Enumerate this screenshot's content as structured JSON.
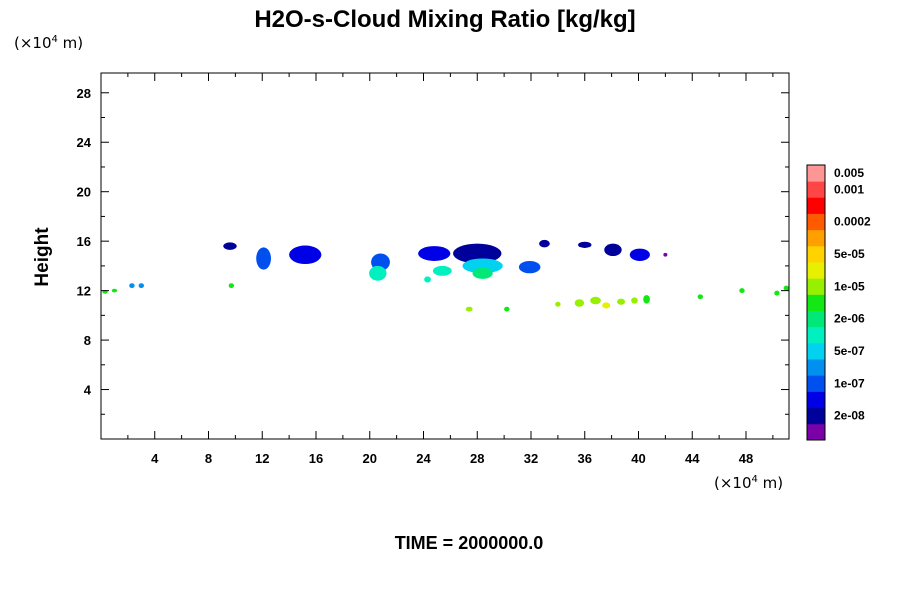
{
  "chart_data": {
    "type": "heatmap",
    "title": "H2O-s-Cloud Mixing Ratio [kg/kg]",
    "xlabel": "",
    "ylabel": "Height",
    "x_unit": {
      "prefix": "(×10",
      "exponent": "4",
      "suffix": " m)"
    },
    "y_unit": {
      "prefix": "(×10",
      "exponent": "4",
      "suffix": " m)"
    },
    "xlim": [
      0,
      51.2
    ],
    "ylim": [
      0,
      29.6
    ],
    "x_ticks": [
      4,
      8,
      12,
      16,
      20,
      24,
      28,
      32,
      36,
      40,
      44,
      48
    ],
    "y_ticks": [
      4,
      8,
      12,
      16,
      20,
      24,
      28
    ],
    "x_tick_labels": [
      "4",
      "8",
      "12",
      "16",
      "20",
      "24",
      "28",
      "32",
      "36",
      "40",
      "44",
      "48"
    ],
    "y_tick_labels": [
      "4",
      "8",
      "12",
      "16",
      "20",
      "24",
      "28"
    ],
    "grid": false,
    "annotation": "TIME = 2000000.0",
    "colorbar": {
      "colors": [
        "#7a00a8",
        "#00009a",
        "#0000e6",
        "#0050f0",
        "#0090f0",
        "#00d2f0",
        "#00f0c0",
        "#00e878",
        "#14e814",
        "#96f000",
        "#e6f000",
        "#ffd200",
        "#ffa000",
        "#ff5a00",
        "#ff0000",
        "#ff4646",
        "#ff9696"
      ],
      "labels": [
        "2e-08",
        "1e-07",
        "5e-07",
        "2e-06",
        "1e-05",
        "5e-05",
        "0.0002",
        "0.001",
        "0.005"
      ],
      "label_bins": [
        1,
        3,
        5,
        7,
        9,
        11,
        13,
        15,
        16
      ]
    },
    "cloud_regions": [
      {
        "x": 9.6,
        "y": 15.6,
        "w": 1.0,
        "h": 0.6,
        "level": 1
      },
      {
        "x": 12.1,
        "y": 14.6,
        "w": 1.1,
        "h": 1.8,
        "level": 3
      },
      {
        "x": 15.2,
        "y": 14.9,
        "w": 2.4,
        "h": 1.5,
        "level": 2
      },
      {
        "x": 20.8,
        "y": 14.3,
        "w": 1.4,
        "h": 1.4,
        "level": 3
      },
      {
        "x": 20.6,
        "y": 13.4,
        "w": 1.3,
        "h": 1.2,
        "level": 6
      },
      {
        "x": 24.8,
        "y": 15.0,
        "w": 2.4,
        "h": 1.2,
        "level": 2
      },
      {
        "x": 28.0,
        "y": 15.0,
        "w": 3.6,
        "h": 1.6,
        "level": 1
      },
      {
        "x": 28.4,
        "y": 14.0,
        "w": 3.0,
        "h": 1.2,
        "level": 5
      },
      {
        "x": 28.4,
        "y": 13.4,
        "w": 1.5,
        "h": 0.9,
        "level": 7
      },
      {
        "x": 25.4,
        "y": 13.6,
        "w": 1.4,
        "h": 0.8,
        "level": 6
      },
      {
        "x": 31.9,
        "y": 13.9,
        "w": 1.6,
        "h": 1.0,
        "level": 3
      },
      {
        "x": 33.0,
        "y": 15.8,
        "w": 0.8,
        "h": 0.6,
        "level": 1
      },
      {
        "x": 36.0,
        "y": 15.7,
        "w": 1.0,
        "h": 0.5,
        "level": 1
      },
      {
        "x": 38.1,
        "y": 15.3,
        "w": 1.3,
        "h": 1.0,
        "level": 1
      },
      {
        "x": 40.1,
        "y": 14.9,
        "w": 1.5,
        "h": 1.0,
        "level": 2
      },
      {
        "x": 24.3,
        "y": 12.9,
        "w": 0.5,
        "h": 0.5,
        "level": 6
      },
      {
        "x": 2.3,
        "y": 12.4,
        "w": 0.4,
        "h": 0.4,
        "level": 4
      },
      {
        "x": 3.0,
        "y": 12.4,
        "w": 0.4,
        "h": 0.4,
        "level": 4
      },
      {
        "x": 1.0,
        "y": 12.0,
        "w": 0.4,
        "h": 0.3,
        "level": 8
      },
      {
        "x": 9.7,
        "y": 12.4,
        "w": 0.4,
        "h": 0.4,
        "level": 8
      },
      {
        "x": 27.4,
        "y": 10.5,
        "w": 0.5,
        "h": 0.4,
        "level": 9
      },
      {
        "x": 30.2,
        "y": 10.5,
        "w": 0.4,
        "h": 0.4,
        "level": 8
      },
      {
        "x": 34.0,
        "y": 10.9,
        "w": 0.4,
        "h": 0.4,
        "level": 9
      },
      {
        "x": 35.6,
        "y": 11.0,
        "w": 0.7,
        "h": 0.6,
        "level": 9
      },
      {
        "x": 36.8,
        "y": 11.2,
        "w": 0.8,
        "h": 0.6,
        "level": 9
      },
      {
        "x": 37.6,
        "y": 10.8,
        "w": 0.6,
        "h": 0.5,
        "level": 10
      },
      {
        "x": 38.7,
        "y": 11.1,
        "w": 0.6,
        "h": 0.5,
        "level": 9
      },
      {
        "x": 39.7,
        "y": 11.2,
        "w": 0.5,
        "h": 0.5,
        "level": 9
      },
      {
        "x": 40.6,
        "y": 11.3,
        "w": 0.5,
        "h": 0.7,
        "level": 8
      },
      {
        "x": 44.6,
        "y": 11.5,
        "w": 0.4,
        "h": 0.4,
        "level": 8
      },
      {
        "x": 47.7,
        "y": 12.0,
        "w": 0.4,
        "h": 0.4,
        "level": 8
      },
      {
        "x": 50.3,
        "y": 11.8,
        "w": 0.4,
        "h": 0.4,
        "level": 8
      },
      {
        "x": 51.0,
        "y": 12.2,
        "w": 0.4,
        "h": 0.4,
        "level": 8
      },
      {
        "x": 0.3,
        "y": 11.9,
        "w": 0.4,
        "h": 0.3,
        "level": 8
      },
      {
        "x": 42.0,
        "y": 14.9,
        "w": 0.3,
        "h": 0.3,
        "level": 0
      }
    ]
  }
}
